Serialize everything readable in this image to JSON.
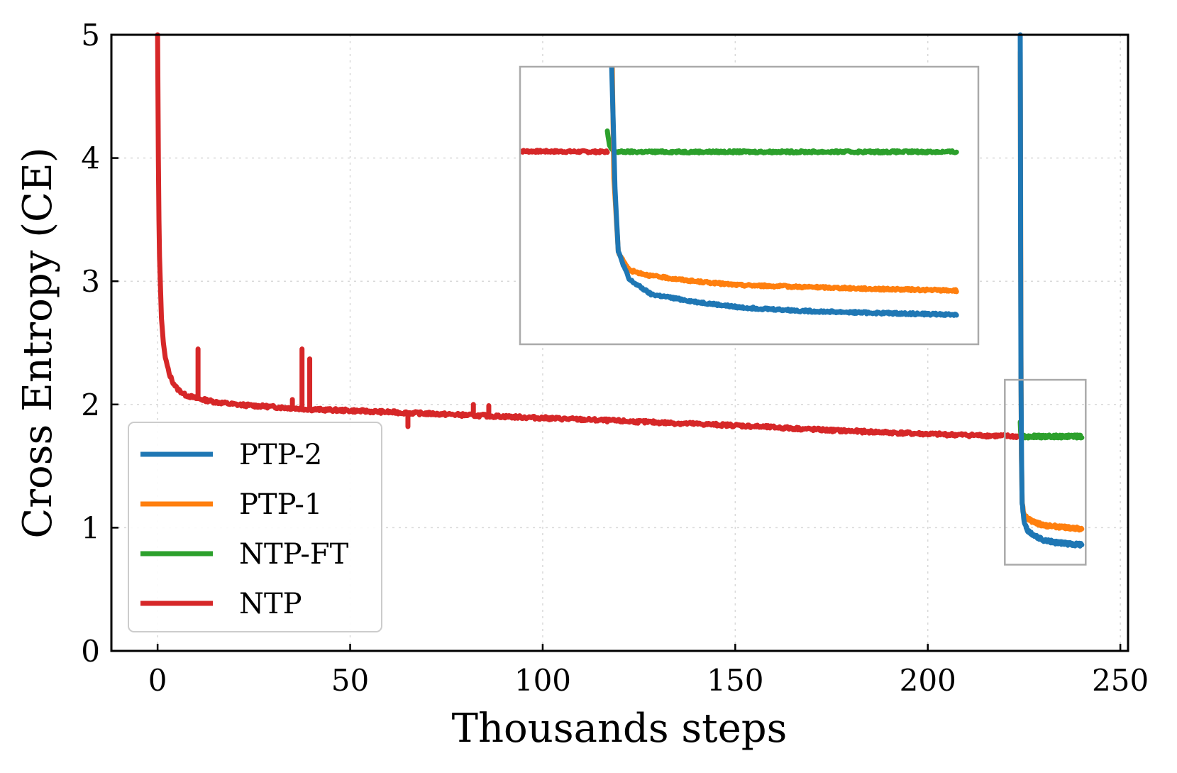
{
  "chart_data": {
    "type": "line",
    "title": "",
    "xlabel": "Thousands steps",
    "ylabel": "Cross Entropy (CE)",
    "xlim": [
      -12,
      252
    ],
    "ylim": [
      0,
      5
    ],
    "xticks": [
      0,
      50,
      100,
      150,
      200,
      250
    ],
    "yticks": [
      0,
      1,
      2,
      3,
      4,
      5
    ],
    "grid": true,
    "legend_position": "lower-left",
    "series": [
      {
        "name": "PTP-2",
        "color": "#1f77b4",
        "x": [
          224.0,
          224.05,
          224.1,
          224.2,
          224.35,
          224.5,
          225,
          226,
          228,
          230,
          233,
          236,
          240
        ],
        "y": [
          5.0,
          4.4,
          3.3,
          2.2,
          1.55,
          1.2,
          1.05,
          0.97,
          0.93,
          0.9,
          0.88,
          0.87,
          0.86
        ]
      },
      {
        "name": "PTP-1",
        "color": "#ff7f0e",
        "x": [
          224.0,
          224.1,
          224.2,
          224.3,
          224.5,
          225,
          226,
          228,
          230,
          233,
          236,
          240
        ],
        "y": [
          4.85,
          3.7,
          2.4,
          1.6,
          1.2,
          1.1,
          1.07,
          1.04,
          1.02,
          1.01,
          1.0,
          0.99
        ]
      },
      {
        "name": "NTP-FT",
        "color": "#2ca02c",
        "x": [
          224.0,
          224.1,
          224.3,
          225,
          230,
          235,
          240
        ],
        "y": [
          1.85,
          1.77,
          1.74,
          1.74,
          1.74,
          1.74,
          1.74
        ]
      },
      {
        "name": "NTP",
        "color": "#d62728",
        "x": [
          0,
          0.1,
          0.2,
          0.35,
          0.5,
          0.8,
          1,
          1.5,
          2,
          3,
          4,
          5,
          7,
          10,
          15,
          20,
          30,
          40,
          50,
          75,
          100,
          125,
          150,
          175,
          200,
          224
        ],
        "y": [
          5.0,
          4.5,
          4.0,
          3.5,
          3.2,
          2.9,
          2.7,
          2.5,
          2.38,
          2.25,
          2.18,
          2.13,
          2.08,
          2.05,
          2.02,
          2.0,
          1.98,
          1.96,
          1.95,
          1.92,
          1.89,
          1.86,
          1.83,
          1.79,
          1.76,
          1.74
        ]
      }
    ],
    "spikes": [
      {
        "x": 10.5,
        "y": 2.45
      },
      {
        "x": 35,
        "y": 2.04
      },
      {
        "x": 37.5,
        "y": 2.45
      },
      {
        "x": 39.5,
        "y": 2.37
      },
      {
        "x": 65,
        "y": 1.82
      },
      {
        "x": 82,
        "y": 2.0
      },
      {
        "x": 86,
        "y": 1.99
      }
    ],
    "inset": {
      "xlim": [
        220,
        241
      ],
      "ylim": [
        0.7,
        2.2
      ]
    }
  }
}
